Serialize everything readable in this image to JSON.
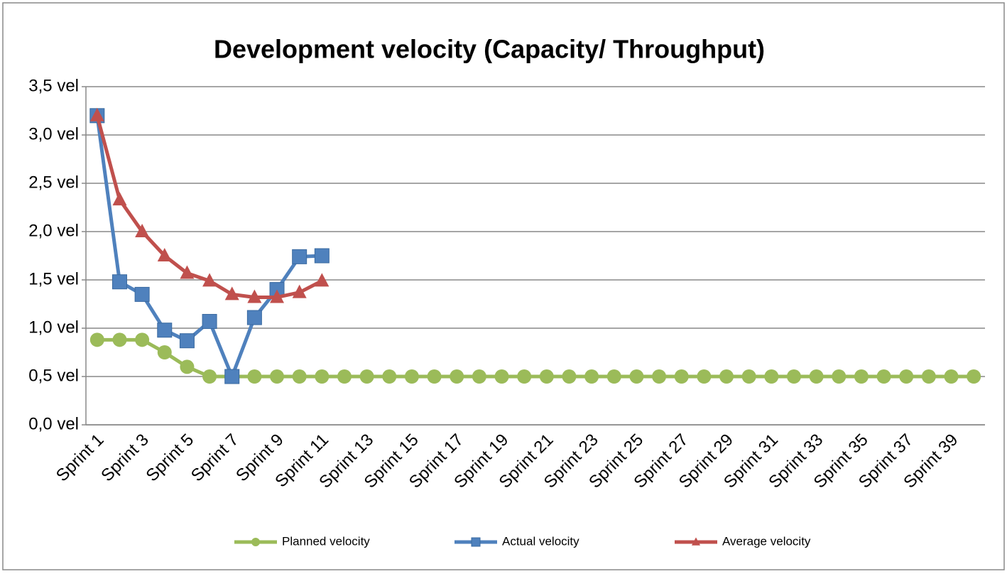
{
  "chart_data": {
    "type": "line",
    "title": "Development velocity (Capacity/ Throughput)",
    "categories": [
      "Sprint 1",
      null,
      "Sprint 3",
      null,
      "Sprint 5",
      null,
      "Sprint 7",
      null,
      "Sprint 9",
      null,
      "Sprint 11",
      null,
      "Sprint 13",
      null,
      "Sprint 15",
      null,
      "Sprint 17",
      null,
      "Sprint 19",
      null,
      "Sprint 21",
      null,
      "Sprint 23",
      null,
      "Sprint 25",
      null,
      "Sprint 27",
      null,
      "Sprint 29",
      null,
      "Sprint 31",
      null,
      "Sprint 33",
      null,
      "Sprint 35",
      null,
      "Sprint 37",
      null,
      "Sprint 39",
      null
    ],
    "series": [
      {
        "name": "Planned velocity",
        "color": "#9bbb59",
        "marker": "circle",
        "values": [
          0.88,
          0.88,
          0.88,
          0.75,
          0.6,
          0.5,
          0.5,
          0.5,
          0.5,
          0.5,
          0.5,
          0.5,
          0.5,
          0.5,
          0.5,
          0.5,
          0.5,
          0.5,
          0.5,
          0.5,
          0.5,
          0.5,
          0.5,
          0.5,
          0.5,
          0.5,
          0.5,
          0.5,
          0.5,
          0.5,
          0.5,
          0.5,
          0.5,
          0.5,
          0.5,
          0.5,
          0.5,
          0.5,
          0.5,
          0.5
        ]
      },
      {
        "name": "Actual velocity",
        "color": "#4f81bd",
        "marker": "square",
        "values": [
          3.2,
          1.48,
          1.35,
          0.98,
          0.87,
          1.07,
          0.5,
          1.11,
          1.4,
          1.74,
          1.75,
          null,
          null,
          null,
          null,
          null,
          null,
          null,
          null,
          null,
          null,
          null,
          null,
          null,
          null,
          null,
          null,
          null,
          null,
          null,
          null,
          null,
          null,
          null,
          null,
          null,
          null,
          null,
          null,
          null
        ]
      },
      {
        "name": "Average velocity",
        "color": "#c0504d",
        "marker": "triangle",
        "values": [
          3.2,
          2.33,
          2.0,
          1.75,
          1.57,
          1.49,
          1.35,
          1.32,
          1.32,
          1.37,
          1.49,
          null,
          null,
          null,
          null,
          null,
          null,
          null,
          null,
          null,
          null,
          null,
          null,
          null,
          null,
          null,
          null,
          null,
          null,
          null,
          null,
          null,
          null,
          null,
          null,
          null,
          null,
          null,
          null,
          null
        ]
      }
    ],
    "ylim": [
      0,
      3.5
    ],
    "yticks": [
      {
        "value": 0,
        "label": "0,0 vel"
      },
      {
        "value": 0.5,
        "label": "0,5 vel"
      },
      {
        "value": 1,
        "label": "1,0 vel"
      },
      {
        "value": 1.5,
        "label": "1,5 vel"
      },
      {
        "value": 2,
        "label": "2,0 vel"
      },
      {
        "value": 2.5,
        "label": "2,5 vel"
      },
      {
        "value": 3,
        "label": "3,0 vel"
      },
      {
        "value": 3.5,
        "label": "3,5 vel"
      }
    ],
    "grid": true,
    "legend": "bottom"
  }
}
